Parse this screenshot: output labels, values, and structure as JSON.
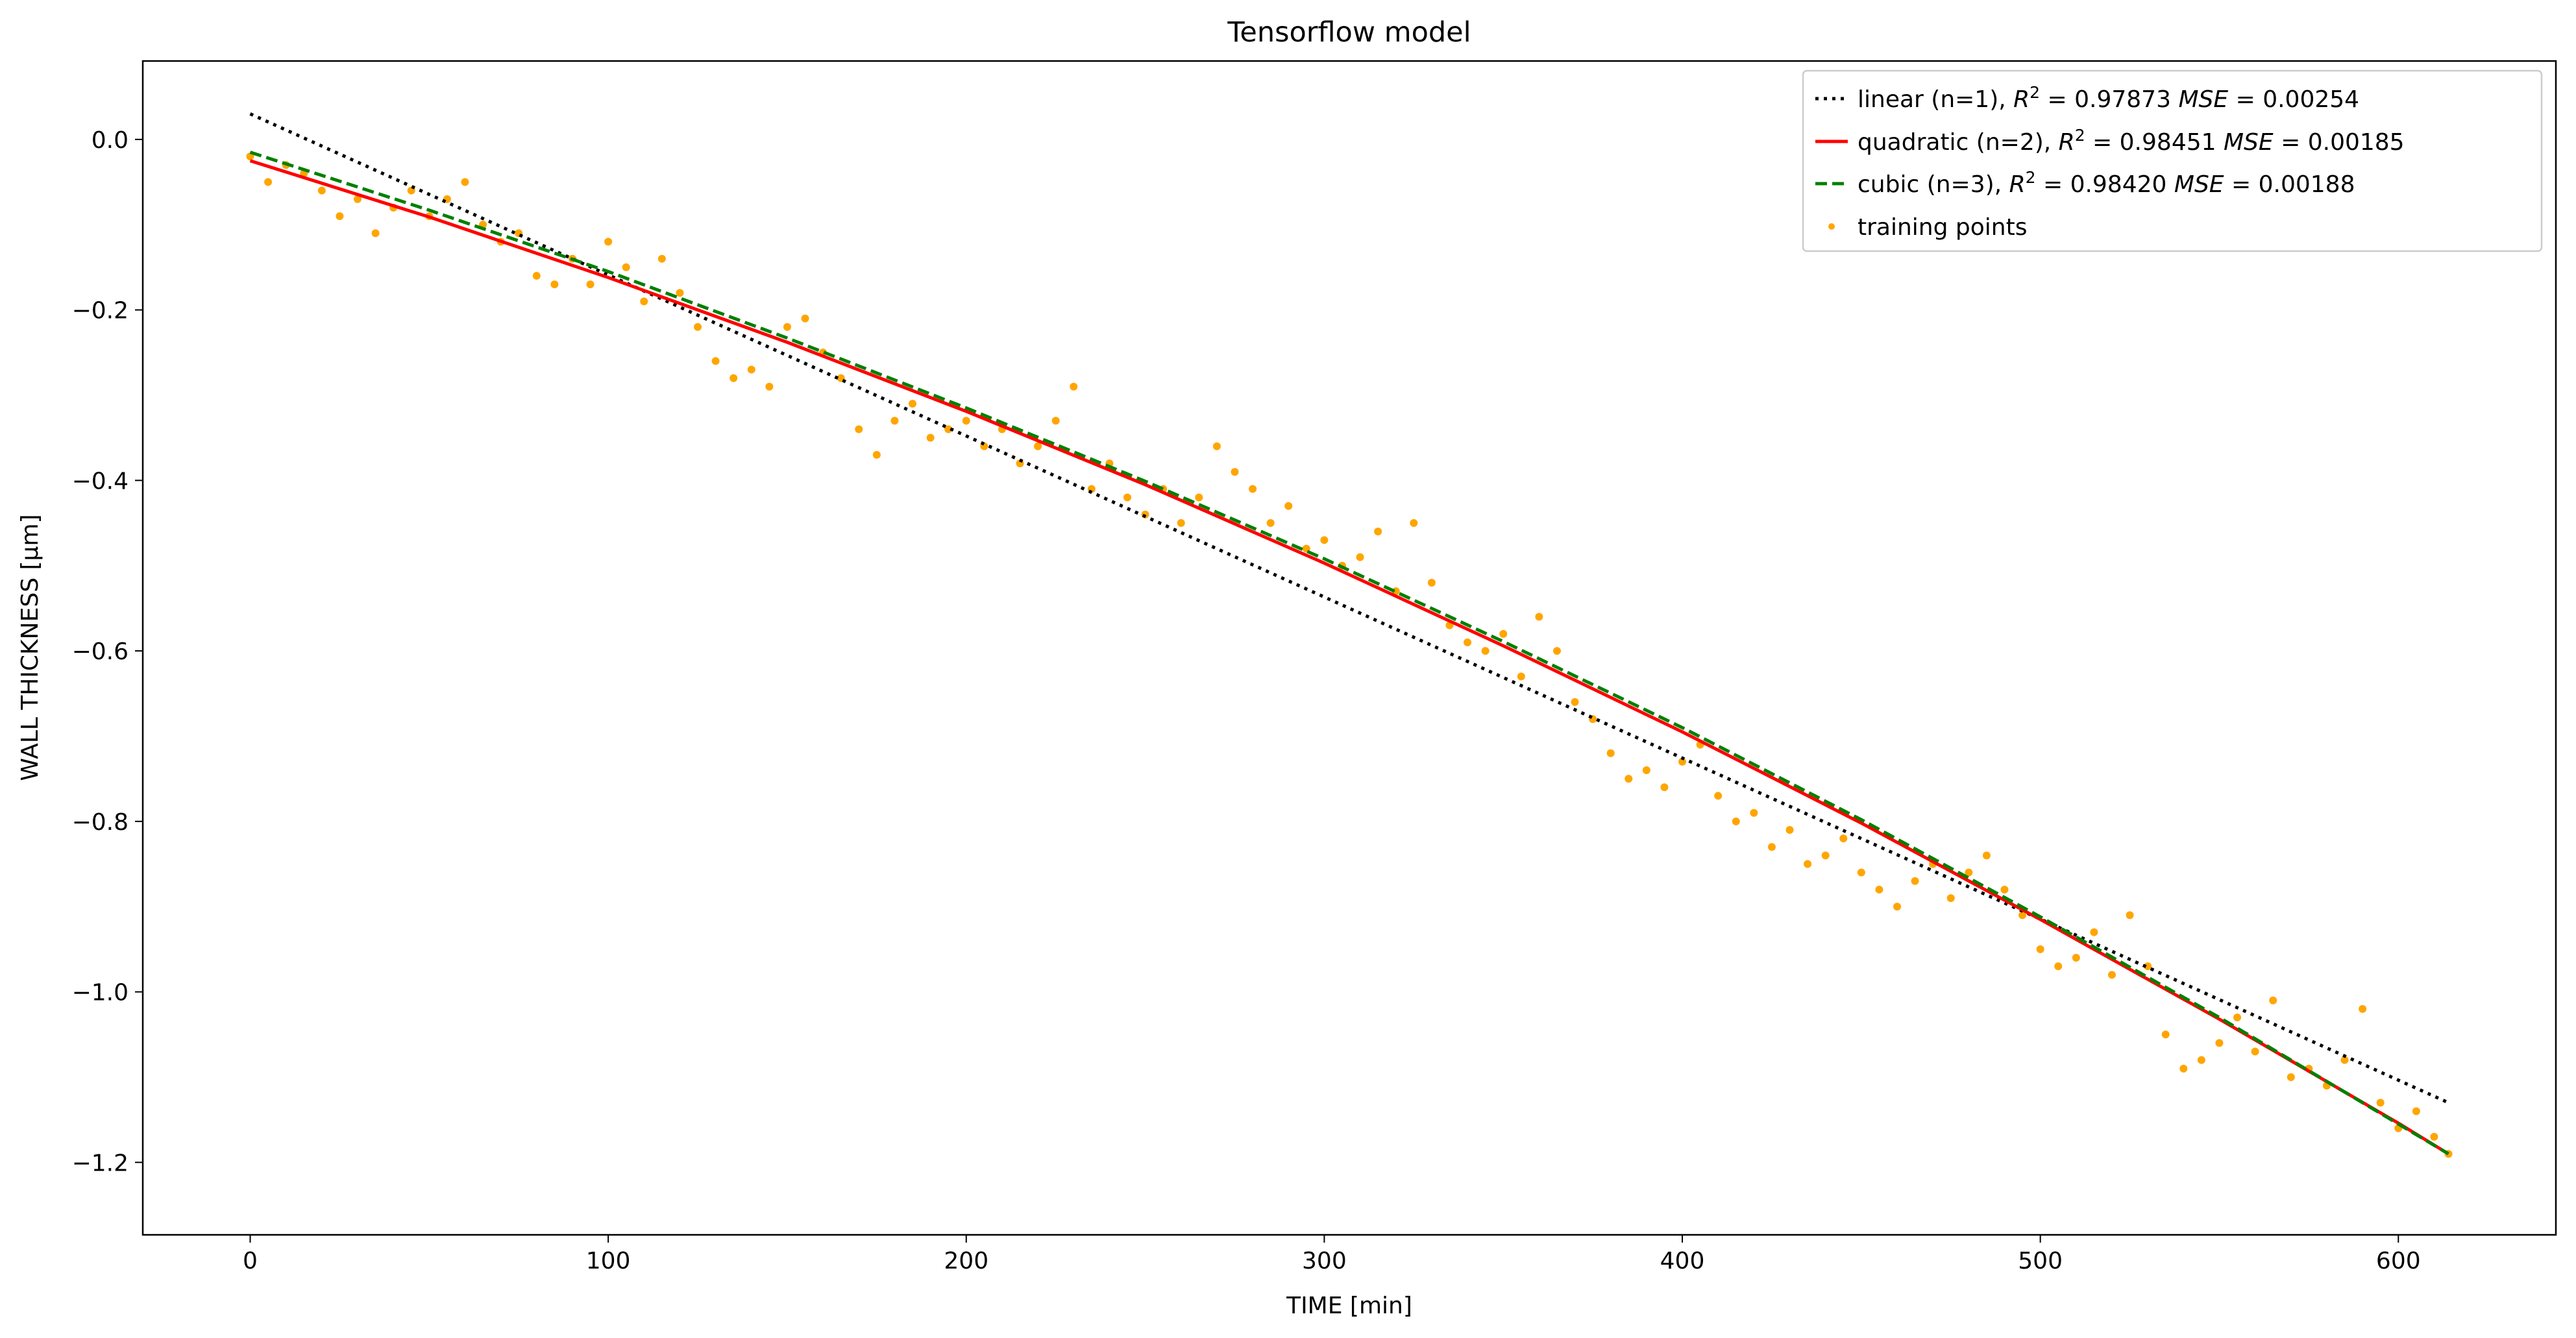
{
  "chart_data": {
    "type": "scatter",
    "title": "Tensorflow model",
    "xlabel": "TIME [min]",
    "ylabel": "WALL THICKNESS [µm]",
    "xlim": [
      -30,
      644
    ],
    "ylim": [
      -1.285,
      0.092
    ],
    "xticks": [
      0,
      100,
      200,
      300,
      400,
      500,
      600
    ],
    "xtick_labels": [
      "0",
      "100",
      "200",
      "300",
      "400",
      "500",
      "600"
    ],
    "yticks": [
      0.0,
      -0.2,
      -0.4,
      -0.6,
      -0.8,
      -1.0,
      -1.2
    ],
    "ytick_labels": [
      "0.0",
      "−0.2",
      "−0.4",
      "−0.6",
      "−0.8",
      "−1.0",
      "−1.2"
    ],
    "grid": false,
    "legend_position": "top-right",
    "series": [
      {
        "kind": "line",
        "style": "dotted",
        "color": "#000000",
        "label": "linear (n=1)",
        "r2": "0.97873",
        "mse": "0.00254",
        "mse_sep": " ",
        "x": [
          0,
          614
        ],
        "y": [
          0.03,
          -1.13
        ]
      },
      {
        "kind": "line",
        "style": "solid",
        "color": "#ff0000",
        "label": "quadratic (n=2)",
        "r2": "0.98451",
        "mse": "0.00185",
        "mse_sep": "  ",
        "x": [
          0,
          50,
          100,
          150,
          200,
          250,
          300,
          350,
          400,
          450,
          500,
          550,
          600,
          614
        ],
        "y": [
          -0.025,
          -0.091,
          -0.162,
          -0.238,
          -0.319,
          -0.405,
          -0.497,
          -0.594,
          -0.695,
          -0.802,
          -0.915,
          -1.032,
          -1.154,
          -1.19
        ]
      },
      {
        "kind": "line",
        "style": "dashed",
        "color": "#008000",
        "label": "cubic (n=3)",
        "r2": "0.98420",
        "mse": "0.00188",
        "mse_sep": "  ",
        "x": [
          0,
          50,
          100,
          150,
          200,
          250,
          300,
          350,
          400,
          450,
          500,
          550,
          600,
          614
        ],
        "y": [
          -0.015,
          -0.083,
          -0.155,
          -0.233,
          -0.315,
          -0.401,
          -0.492,
          -0.589,
          -0.69,
          -0.798,
          -0.912,
          -1.03,
          -1.155,
          -1.19
        ]
      },
      {
        "kind": "scatter",
        "color": "#ffa500",
        "label": "training points",
        "x": [
          0,
          5,
          10,
          15,
          20,
          25,
          30,
          35,
          40,
          45,
          50,
          55,
          60,
          65,
          70,
          75,
          80,
          85,
          90,
          95,
          100,
          105,
          110,
          115,
          120,
          125,
          130,
          135,
          140,
          145,
          150,
          155,
          160,
          165,
          170,
          175,
          180,
          185,
          190,
          195,
          200,
          205,
          210,
          215,
          220,
          225,
          230,
          235,
          240,
          245,
          250,
          255,
          260,
          265,
          270,
          275,
          280,
          285,
          290,
          295,
          300,
          305,
          310,
          315,
          320,
          325,
          330,
          335,
          340,
          345,
          350,
          355,
          360,
          365,
          370,
          375,
          380,
          385,
          390,
          395,
          400,
          405,
          410,
          415,
          420,
          425,
          430,
          435,
          440,
          445,
          450,
          455,
          460,
          465,
          470,
          475,
          480,
          485,
          490,
          495,
          500,
          505,
          510,
          515,
          520,
          525,
          530,
          535,
          540,
          545,
          550,
          555,
          560,
          565,
          570,
          575,
          580,
          585,
          590,
          595,
          600,
          605,
          610,
          614
        ],
        "y": [
          -0.02,
          -0.05,
          -0.03,
          -0.04,
          -0.06,
          -0.09,
          -0.07,
          -0.11,
          -0.08,
          -0.06,
          -0.09,
          -0.07,
          -0.05,
          -0.1,
          -0.12,
          -0.11,
          -0.16,
          -0.17,
          -0.14,
          -0.17,
          -0.12,
          -0.15,
          -0.19,
          -0.14,
          -0.18,
          -0.22,
          -0.26,
          -0.28,
          -0.27,
          -0.29,
          -0.22,
          -0.21,
          -0.25,
          -0.28,
          -0.34,
          -0.37,
          -0.33,
          -0.31,
          -0.35,
          -0.34,
          -0.33,
          -0.36,
          -0.34,
          -0.38,
          -0.36,
          -0.33,
          -0.29,
          -0.41,
          -0.38,
          -0.42,
          -0.44,
          -0.41,
          -0.45,
          -0.42,
          -0.36,
          -0.39,
          -0.41,
          -0.45,
          -0.43,
          -0.48,
          -0.47,
          -0.5,
          -0.49,
          -0.46,
          -0.53,
          -0.45,
          -0.52,
          -0.57,
          -0.59,
          -0.6,
          -0.58,
          -0.63,
          -0.56,
          -0.6,
          -0.66,
          -0.68,
          -0.72,
          -0.75,
          -0.74,
          -0.76,
          -0.73,
          -0.71,
          -0.77,
          -0.8,
          -0.79,
          -0.83,
          -0.81,
          -0.85,
          -0.84,
          -0.82,
          -0.86,
          -0.88,
          -0.9,
          -0.87,
          -0.85,
          -0.89,
          -0.86,
          -0.84,
          -0.88,
          -0.91,
          -0.95,
          -0.97,
          -0.96,
          -0.93,
          -0.98,
          -0.91,
          -0.97,
          -1.05,
          -1.09,
          -1.08,
          -1.06,
          -1.03,
          -1.07,
          -1.01,
          -1.1,
          -1.09,
          -1.11,
          -1.08,
          -1.02,
          -1.13,
          -1.16,
          -1.14,
          -1.17,
          -1.19
        ]
      }
    ]
  }
}
